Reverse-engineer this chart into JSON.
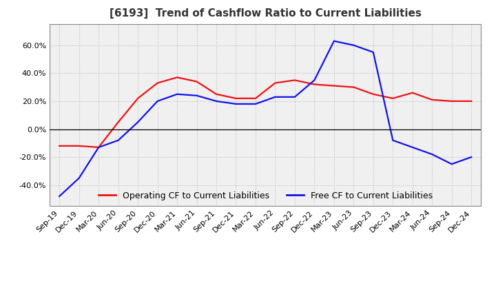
{
  "title": "[6193]  Trend of Cashflow Ratio to Current Liabilities",
  "x_labels": [
    "Sep-19",
    "Dec-19",
    "Mar-20",
    "Jun-20",
    "Sep-20",
    "Dec-20",
    "Mar-21",
    "Jun-21",
    "Sep-21",
    "Dec-21",
    "Mar-22",
    "Jun-22",
    "Sep-22",
    "Dec-22",
    "Mar-23",
    "Jun-23",
    "Sep-23",
    "Dec-23",
    "Mar-24",
    "Jun-24",
    "Sep-24",
    "Dec-24"
  ],
  "operating_cf": [
    -12,
    -12,
    -13,
    5,
    22,
    33,
    37,
    34,
    25,
    22,
    22,
    33,
    35,
    32,
    31,
    30,
    25,
    22,
    26,
    21,
    20,
    20
  ],
  "free_cf": [
    -48,
    -35,
    -13,
    -8,
    5,
    20,
    25,
    24,
    20,
    18,
    18,
    23,
    23,
    35,
    63,
    60,
    55,
    -8,
    -13,
    -18,
    -25,
    -20
  ],
  "operating_color": "#ee1111",
  "free_color": "#1111ee",
  "ylim": [
    -55,
    75
  ],
  "yticks": [
    -40,
    -20,
    0,
    20,
    40,
    60
  ],
  "background_color": "#ffffff",
  "plot_bg_color": "#f0f0f0",
  "grid_color": "#bbbbbb",
  "legend_labels": [
    "Operating CF to Current Liabilities",
    "Free CF to Current Liabilities"
  ],
  "title_fontsize": 11,
  "axis_fontsize": 8,
  "legend_fontsize": 9,
  "line_width": 1.6
}
